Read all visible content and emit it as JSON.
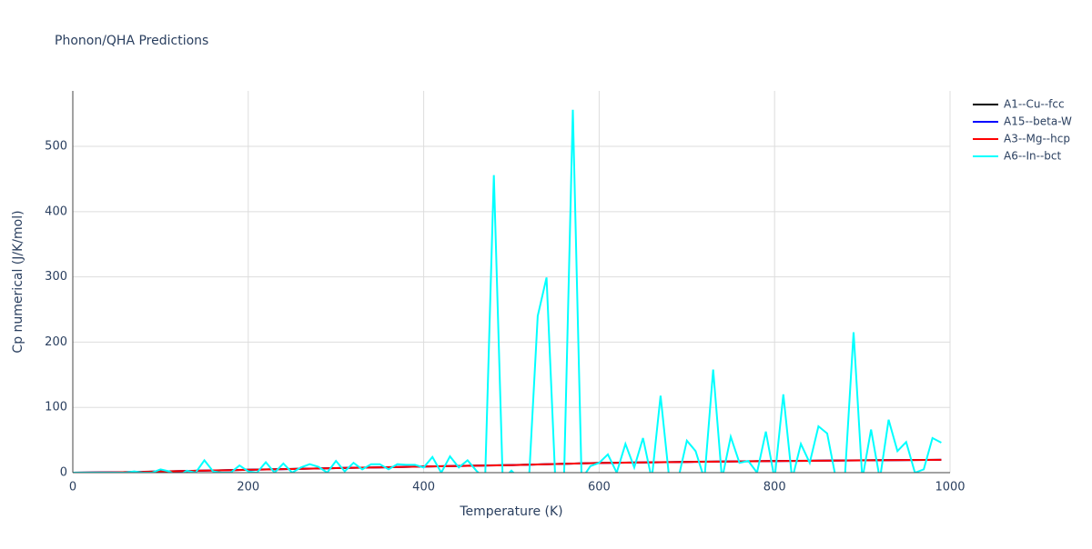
{
  "chart_data": {
    "type": "line",
    "title": "Phonon/QHA Predictions",
    "x_label": "Temperature (K)",
    "y_label": "Cp numerical (J/K/mol)",
    "xlim": [
      0,
      1000
    ],
    "xticks": [
      0,
      200,
      400,
      600,
      800,
      1000
    ],
    "ylim": [
      0,
      585
    ],
    "yticks": [
      0,
      100,
      200,
      300,
      400,
      500
    ],
    "grid": true,
    "legend": "right",
    "series": [
      {
        "name": "A1--Cu--fcc",
        "color": "#000000",
        "x": [
          0,
          50,
          100,
          150,
          200,
          250,
          300,
          350,
          400,
          450,
          500,
          550,
          600,
          650,
          700,
          750,
          800,
          850,
          900,
          950,
          990
        ],
        "values": [
          0,
          0.6,
          1.9,
          3.1,
          4.4,
          5.7,
          7.0,
          8.2,
          9.4,
          10.6,
          11.7,
          13.3,
          14.9,
          15.8,
          16.6,
          17.3,
          17.9,
          18.4,
          18.9,
          19.4,
          19.7
        ]
      },
      {
        "name": "A15--beta-W",
        "color": "#0000ff",
        "x": [
          0,
          50,
          100,
          150,
          200,
          250,
          300,
          350,
          400,
          450,
          500,
          550,
          600,
          650,
          700,
          750,
          800,
          850,
          900,
          950,
          990
        ],
        "values": [
          0,
          0.5,
          1.8,
          3.0,
          4.3,
          5.6,
          6.9,
          8.1,
          9.3,
          10.5,
          11.6,
          13.2,
          14.8,
          15.7,
          16.5,
          17.2,
          17.8,
          18.3,
          18.8,
          19.3,
          19.6
        ]
      },
      {
        "name": "A3--Mg--hcp",
        "color": "#ff0000",
        "x": [
          0,
          50,
          100,
          150,
          200,
          250,
          300,
          350,
          400,
          450,
          500,
          550,
          600,
          650,
          700,
          750,
          800,
          850,
          900,
          950,
          990
        ],
        "values": [
          0,
          0.5,
          1.8,
          3.0,
          4.3,
          5.6,
          6.9,
          8.1,
          9.3,
          10.5,
          11.6,
          13.2,
          14.8,
          15.7,
          16.5,
          17.2,
          17.8,
          18.3,
          18.8,
          19.3,
          19.6
        ]
      },
      {
        "name": "A6--In--bct",
        "color": "#00ffff",
        "x": [
          0,
          10,
          20,
          30,
          40,
          50,
          60,
          70,
          80,
          90,
          100,
          110,
          120,
          130,
          140,
          150,
          160,
          170,
          180,
          190,
          200,
          210,
          220,
          230,
          240,
          250,
          260,
          270,
          280,
          290,
          300,
          310,
          320,
          330,
          340,
          350,
          360,
          370,
          380,
          390,
          400,
          410,
          420,
          430,
          440,
          450,
          460,
          470,
          480,
          490,
          500,
          510,
          520,
          530,
          540,
          550,
          560,
          570,
          580,
          590,
          600,
          610,
          620,
          630,
          640,
          650,
          660,
          670,
          680,
          690,
          700,
          710,
          720,
          730,
          740,
          750,
          760,
          770,
          780,
          790,
          800,
          810,
          820,
          830,
          840,
          850,
          860,
          870,
          880,
          890,
          900,
          910,
          920,
          930,
          940,
          950,
          960,
          970,
          980,
          990
        ],
        "values": [
          0,
          0,
          0,
          0,
          0,
          0,
          0,
          2,
          0,
          0,
          5,
          2,
          -5,
          3,
          0,
          19,
          2,
          0,
          0,
          11,
          2,
          0,
          16,
          0,
          14,
          0,
          8,
          13,
          9,
          0,
          18,
          2,
          15,
          5,
          13,
          13,
          5,
          13,
          12,
          12,
          8,
          24,
          0,
          25,
          8,
          19,
          3,
          -10,
          456,
          -10,
          3,
          -10,
          -10,
          240,
          299,
          -10,
          -10,
          556,
          -10,
          10,
          15,
          28,
          0,
          44,
          8,
          53,
          -10,
          118,
          -10,
          -10,
          49,
          33,
          -10,
          158,
          -10,
          55,
          15,
          18,
          0,
          63,
          -10,
          120,
          -10,
          44,
          15,
          71,
          60,
          -10,
          -10,
          215,
          -10,
          66,
          -10,
          81,
          33,
          47,
          0,
          5,
          53,
          46
        ]
      }
    ]
  }
}
